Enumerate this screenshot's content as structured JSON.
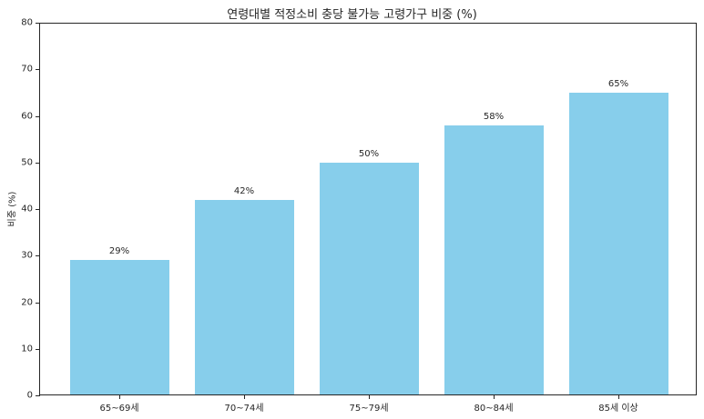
{
  "chart_data": {
    "type": "bar",
    "title": "연령대별 적정소비 충당 불가능 고령가구 비중 (%)",
    "xlabel": "",
    "ylabel": "비중 (%)",
    "categories": [
      "65~69세",
      "70~74세",
      "75~79세",
      "80~84세",
      "85세 이상"
    ],
    "values": [
      29,
      42,
      50,
      58,
      65
    ],
    "data_labels": [
      "29%",
      "42%",
      "50%",
      "58%",
      "65%"
    ],
    "ylim": [
      0,
      80
    ],
    "yticks": [
      0,
      10,
      20,
      30,
      40,
      50,
      60,
      70,
      80
    ],
    "bar_color": "#87ceeb",
    "grid": false,
    "legend": null
  }
}
